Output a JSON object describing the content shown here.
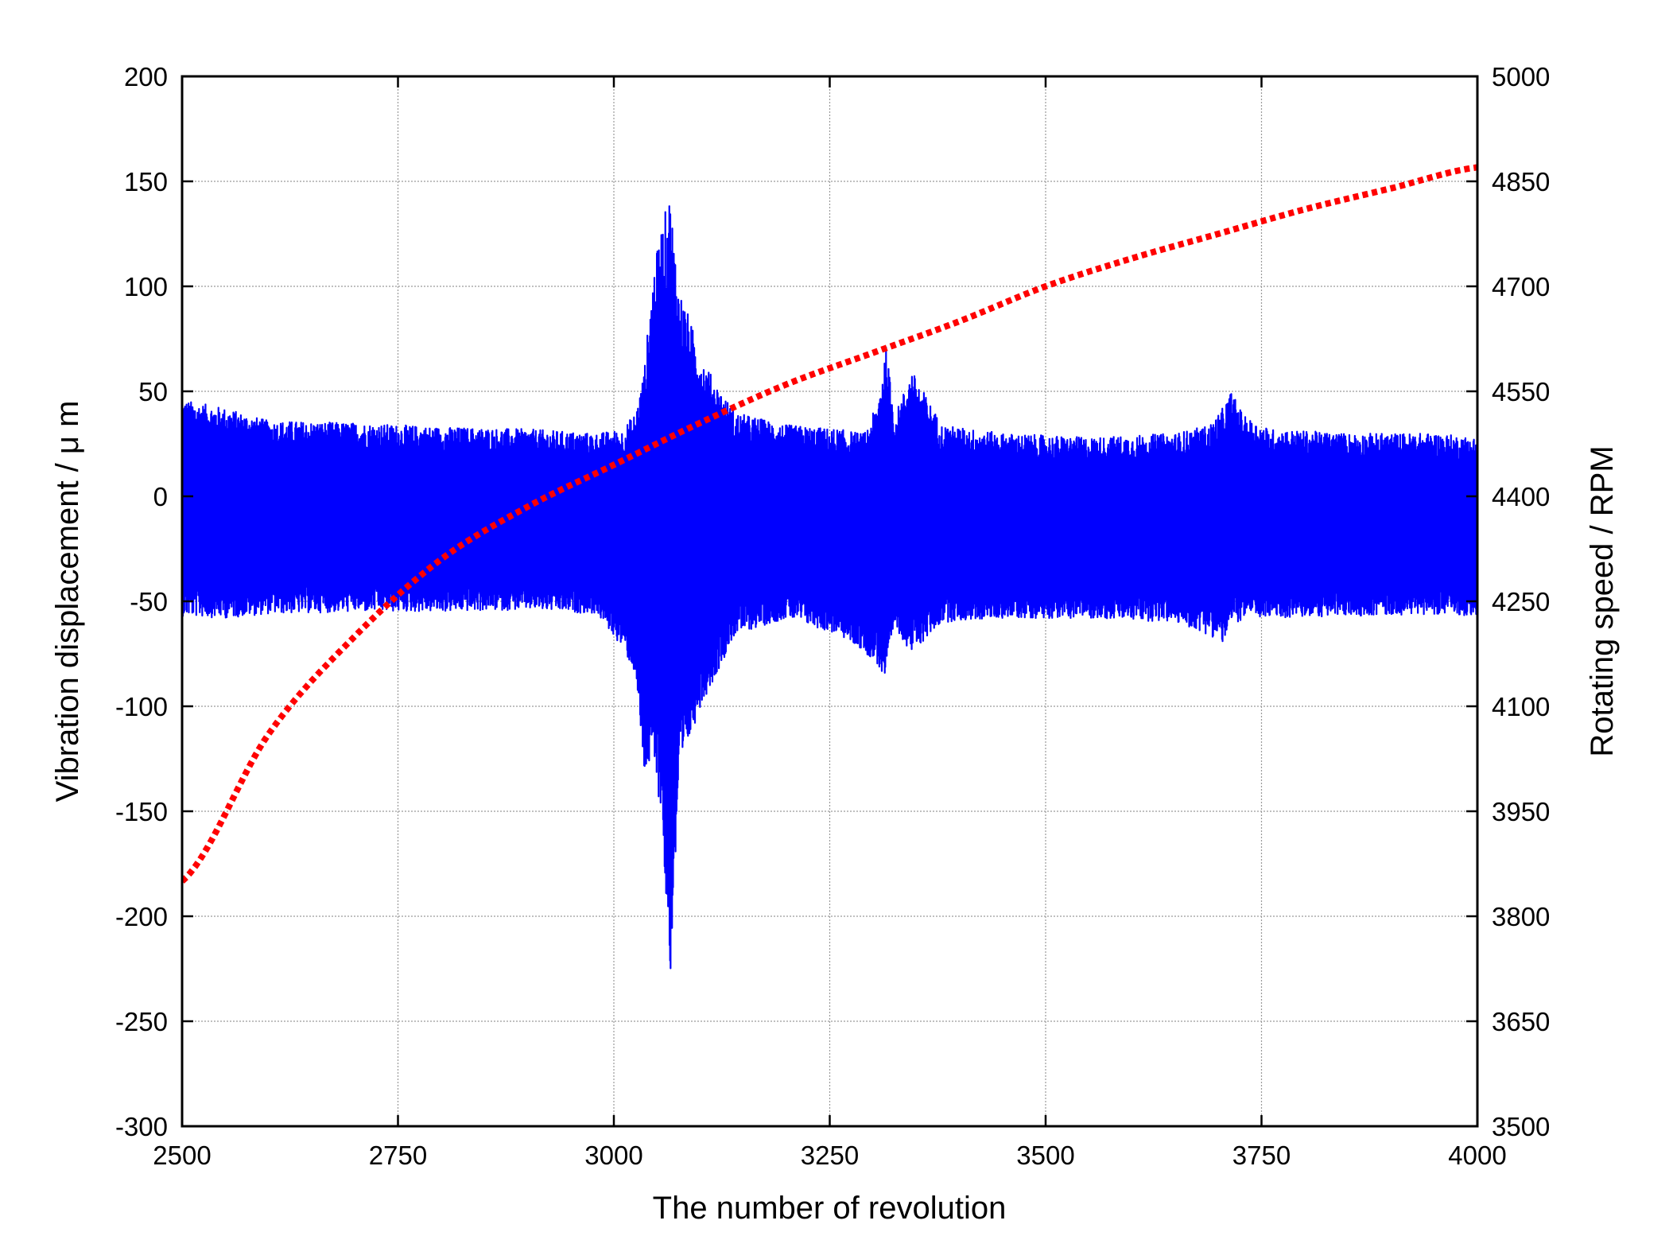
{
  "chart_data": {
    "type": "line",
    "title": "",
    "xlabel": "The number of revolution",
    "ylabel_left": "Vibration displacement / μ m",
    "ylabel_right": "Rotating speed / RPM",
    "xlim": [
      2500,
      4000
    ],
    "ylim_left": [
      -300,
      200
    ],
    "ylim_right": [
      3500,
      5000
    ],
    "x_ticks": [
      "2500",
      "2750",
      "3000",
      "3250",
      "3500",
      "3750",
      "4000"
    ],
    "y_left_ticks": [
      "200",
      "150",
      "100",
      "50",
      "0",
      "-50",
      "-100",
      "-150",
      "-200",
      "-250",
      "-300"
    ],
    "y_right_ticks": [
      "5000",
      "4850",
      "4700",
      "4550",
      "4400",
      "4250",
      "4100",
      "3950",
      "3800",
      "3650",
      "3500"
    ],
    "grid": true,
    "legend": "none",
    "series": [
      {
        "axis": "left",
        "style": "solid",
        "color": "#0000ff",
        "envelope": {
          "x": [
            2500,
            2550,
            2600,
            2700,
            2800,
            2900,
            2980,
            3010,
            3025,
            3035,
            3045,
            3055,
            3065,
            3075,
            3085,
            3100,
            3115,
            3140,
            3200,
            3260,
            3290,
            3305,
            3315,
            3325,
            3345,
            3380,
            3450,
            3550,
            3650,
            3690,
            3705,
            3715,
            3730,
            3760,
            3850,
            3950,
            4000
          ],
          "upper": [
            46,
            42,
            36,
            35,
            33,
            32,
            30,
            32,
            40,
            60,
            105,
            128,
            145,
            100,
            88,
            68,
            56,
            40,
            34,
            32,
            30,
            44,
            72,
            38,
            60,
            34,
            30,
            28,
            30,
            34,
            42,
            50,
            38,
            32,
            30,
            30,
            28
          ],
          "lower": [
            -57,
            -58,
            -56,
            -55,
            -55,
            -54,
            -56,
            -72,
            -85,
            -132,
            -128,
            -150,
            -233,
            -142,
            -120,
            -100,
            -88,
            -66,
            -58,
            -66,
            -74,
            -80,
            -90,
            -62,
            -75,
            -60,
            -58,
            -58,
            -60,
            -66,
            -70,
            -62,
            -58,
            -58,
            -57,
            -56,
            -57
          ]
        }
      },
      {
        "axis": "right",
        "style": "dotted",
        "color": "#ff0000",
        "x": [
          2500,
          2600,
          2700,
          2800,
          2900,
          3000,
          3100,
          3200,
          3300,
          3400,
          3500,
          3600,
          3700,
          3800,
          3900,
          4000
        ],
        "values": [
          3850,
          4060,
          4200,
          4310,
          4385,
          4445,
          4505,
          4560,
          4605,
          4650,
          4700,
          4740,
          4775,
          4810,
          4840,
          4870
        ]
      }
    ]
  }
}
